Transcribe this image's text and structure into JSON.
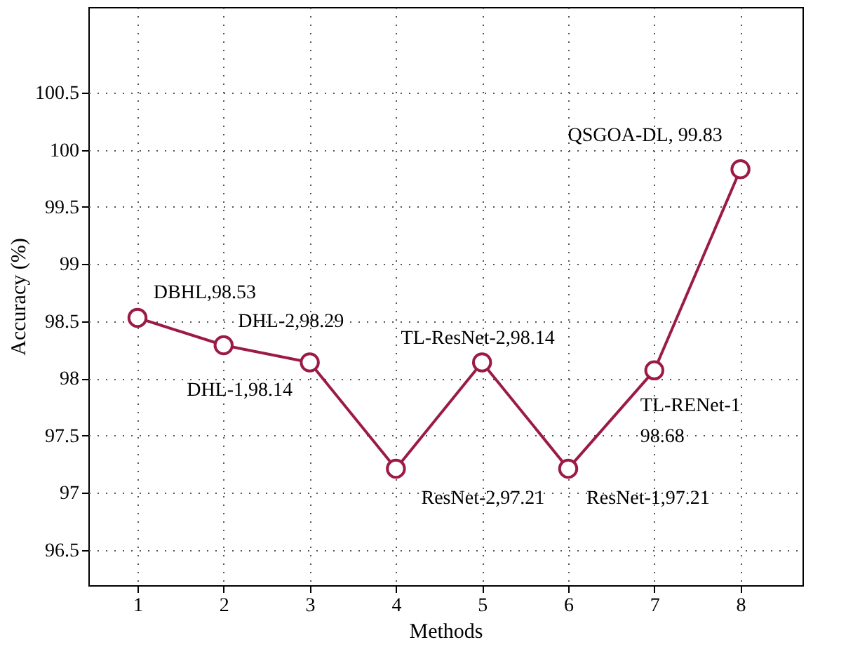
{
  "chart_data": {
    "type": "line",
    "xlabel": "Methods",
    "ylabel": "Accuracy (%)",
    "x": [
      1,
      2,
      3,
      4,
      5,
      6,
      7,
      8
    ],
    "series": [
      {
        "color": "#9b1b46",
        "values": [
          98.53,
          98.29,
          98.14,
          97.21,
          98.14,
          97.21,
          98.07,
          99.83
        ]
      }
    ],
    "xlim": [
      0.43,
      8.72
    ],
    "xticks": [
      1,
      2,
      3,
      4,
      5,
      6,
      7,
      8
    ],
    "ylim": [
      96.19,
      101.25
    ],
    "yticks": [
      96.5,
      97,
      97.5,
      98,
      98.5,
      99,
      99.5,
      100,
      100.5
    ],
    "grid": true,
    "marker": "circle",
    "line_style": "solid",
    "annotations": [
      {
        "text": "DBHL,98.53",
        "x": 1,
        "y": 98.53
      },
      {
        "text": "DHL-2,98.29",
        "x": 2,
        "y": 98.29
      },
      {
        "text": "DHL-1,98.14",
        "x": 3,
        "y": 98.14
      },
      {
        "text": "ResNet-2,97.21",
        "x": 4,
        "y": 97.21
      },
      {
        "text": "TL-ResNet-2,98.14",
        "x": 5,
        "y": 98.14
      },
      {
        "text": "ResNet-1,97.21",
        "x": 6,
        "y": 97.21
      },
      {
        "text": "TL-RENet-1\n98.68",
        "x": 7,
        "y": 98.07
      },
      {
        "text": "QSGOA-DL, 99.83",
        "x": 8,
        "y": 99.83
      }
    ]
  }
}
